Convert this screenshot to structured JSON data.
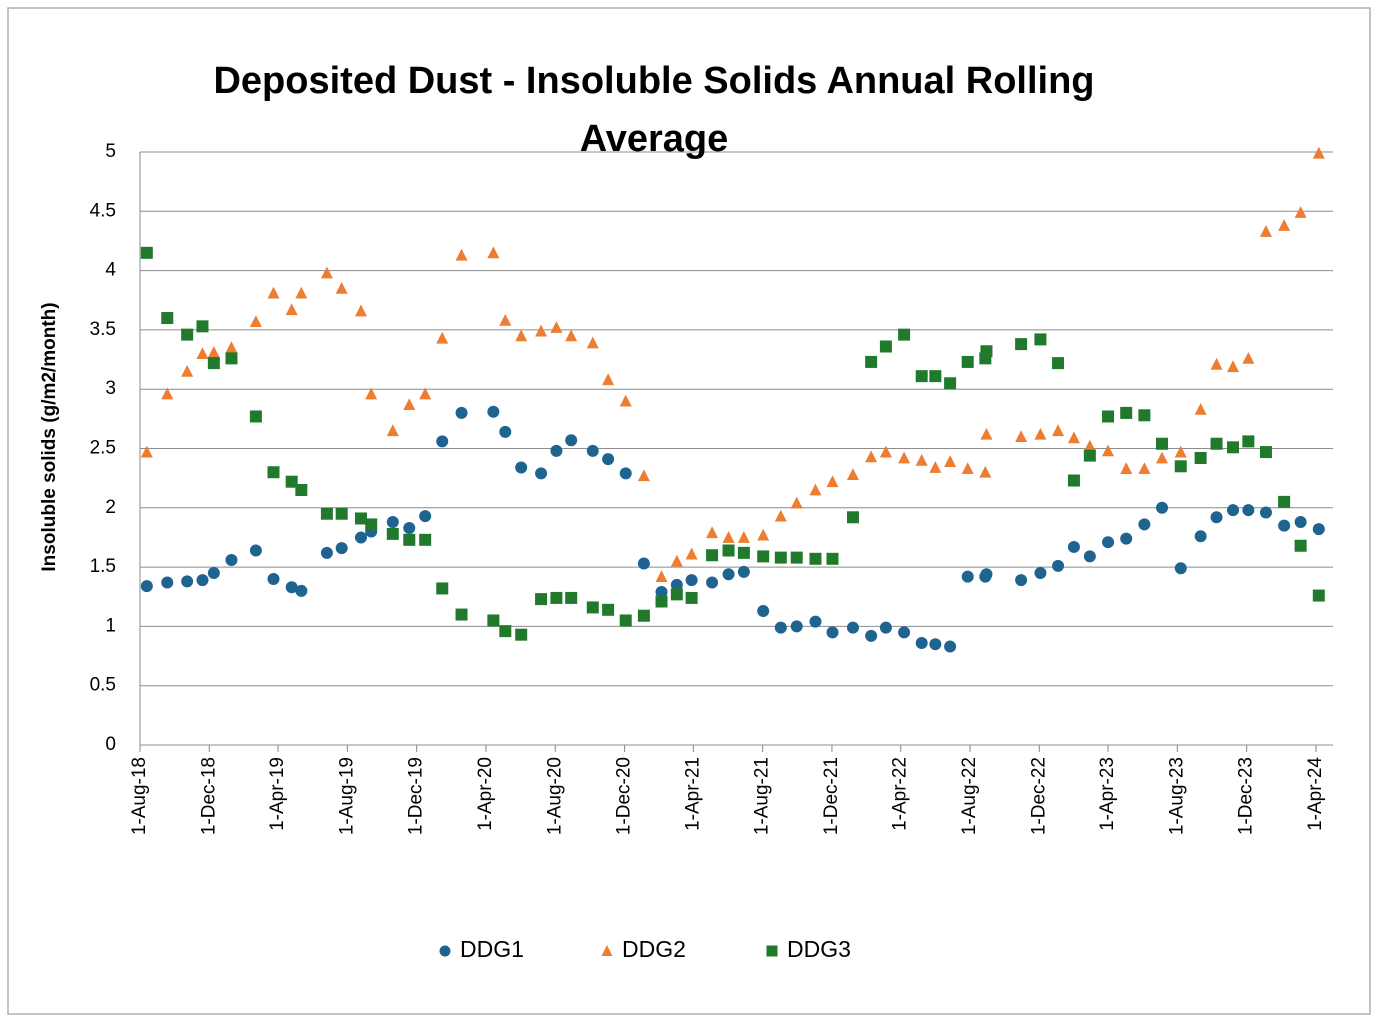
{
  "chart_data": {
    "type": "scatter",
    "title": "Deposited Dust - Insoluble Solids Annual Rolling Average",
    "y_label": "Insoluble solids (g/m2/month)",
    "x": [
      "2018-08-13",
      "2018-09-18",
      "2018-10-23",
      "2018-11-19",
      "2018-12-09",
      "2019-01-09",
      "2019-02-21",
      "2019-03-24",
      "2019-04-25",
      "2019-05-12",
      "2019-06-26",
      "2019-07-22",
      "2019-08-25",
      "2019-09-12",
      "2019-10-20",
      "2019-11-18",
      "2019-12-16",
      "2020-01-15",
      "2020-02-18",
      "2020-04-14",
      "2020-05-05",
      "2020-06-02",
      "2020-07-07",
      "2020-08-03",
      "2020-08-29",
      "2020-10-06",
      "2020-11-02",
      "2020-12-03",
      "2021-01-04",
      "2021-02-04",
      "2021-03-03",
      "2021-03-29",
      "2021-05-04",
      "2021-06-02",
      "2021-06-29",
      "2021-08-02",
      "2021-09-02",
      "2021-09-30",
      "2021-11-02",
      "2021-12-02",
      "2022-01-07",
      "2022-02-08",
      "2022-03-06",
      "2022-04-07",
      "2022-05-08",
      "2022-06-01",
      "2022-06-27",
      "2022-07-28",
      "2022-08-28",
      "2022-08-30",
      "2022-10-30",
      "2022-12-03",
      "2023-01-03",
      "2023-01-31",
      "2023-02-28",
      "2023-04-01",
      "2023-05-03",
      "2023-06-04",
      "2023-07-05",
      "2023-08-07",
      "2023-09-11",
      "2023-10-09",
      "2023-11-07",
      "2023-12-04",
      "2024-01-04",
      "2024-02-05",
      "2024-03-05",
      "2024-04-06"
    ],
    "series": [
      {
        "name": "DDG1",
        "color": "#1f6391",
        "marker": "circle",
        "values": [
          1.34,
          1.37,
          1.38,
          1.39,
          1.45,
          1.56,
          1.64,
          1.4,
          1.33,
          1.3,
          1.62,
          1.66,
          1.75,
          1.8,
          1.88,
          1.83,
          1.93,
          2.56,
          2.8,
          2.81,
          2.64,
          2.34,
          2.29,
          2.48,
          2.57,
          2.48,
          2.41,
          2.29,
          1.53,
          1.29,
          1.35,
          1.39,
          1.37,
          1.44,
          1.46,
          1.13,
          0.99,
          1.0,
          1.04,
          0.95,
          0.99,
          0.92,
          0.99,
          0.95,
          0.86,
          0.85,
          0.83,
          1.42,
          1.42,
          1.44,
          1.39,
          1.45,
          1.51,
          1.67,
          1.59,
          1.71,
          1.74,
          1.86,
          2.0,
          1.49,
          1.76,
          1.92,
          1.98,
          1.98,
          1.96,
          1.85,
          1.88,
          1.82
        ]
      },
      {
        "name": "DDG2",
        "color": "#ed7d31",
        "marker": "triangle",
        "values": [
          2.47,
          2.96,
          3.15,
          3.3,
          3.31,
          3.35,
          3.57,
          3.81,
          3.67,
          3.81,
          3.98,
          3.85,
          3.66,
          2.96,
          2.65,
          2.87,
          2.96,
          3.43,
          4.13,
          4.15,
          3.58,
          3.45,
          3.49,
          3.52,
          3.45,
          3.39,
          3.08,
          2.9,
          2.27,
          1.42,
          1.55,
          1.61,
          1.79,
          1.75,
          1.75,
          1.77,
          1.93,
          2.04,
          2.15,
          2.22,
          2.28,
          2.43,
          2.47,
          2.42,
          2.4,
          2.34,
          2.39,
          2.33,
          2.3,
          2.62,
          2.6,
          2.62,
          2.65,
          2.59,
          2.52,
          2.48,
          2.33,
          2.33,
          2.42,
          2.47,
          2.83,
          3.21,
          3.19,
          3.26,
          4.33,
          4.38,
          4.49,
          4.99
        ]
      },
      {
        "name": "DDG3",
        "color": "#217a2b",
        "marker": "square",
        "values": [
          4.15,
          3.6,
          3.46,
          3.53,
          3.22,
          3.26,
          2.77,
          2.3,
          2.22,
          2.15,
          1.95,
          1.95,
          1.91,
          1.86,
          1.78,
          1.73,
          1.73,
          1.32,
          1.1,
          1.05,
          0.96,
          0.93,
          1.23,
          1.24,
          1.24,
          1.16,
          1.14,
          1.05,
          1.09,
          1.21,
          1.27,
          1.24,
          1.6,
          1.64,
          1.62,
          1.59,
          1.58,
          1.58,
          1.57,
          1.57,
          1.92,
          3.23,
          3.36,
          3.46,
          3.11,
          3.11,
          3.05,
          3.23,
          3.26,
          3.32,
          3.38,
          3.42,
          3.22,
          2.23,
          2.44,
          2.77,
          2.8,
          2.78,
          2.54,
          2.35,
          2.42,
          2.54,
          2.51,
          2.56,
          2.47,
          2.05,
          1.68,
          1.26
        ]
      }
    ],
    "xlim": [
      "2018-08-01",
      "2024-05-01"
    ],
    "xticks": [
      {
        "value": "2018-08-01",
        "label": "1-Aug-18"
      },
      {
        "value": "2018-12-01",
        "label": "1-Dec-18"
      },
      {
        "value": "2019-04-01",
        "label": "1-Apr-19"
      },
      {
        "value": "2019-08-01",
        "label": "1-Aug-19"
      },
      {
        "value": "2019-12-01",
        "label": "1-Dec-19"
      },
      {
        "value": "2020-04-01",
        "label": "1-Apr-20"
      },
      {
        "value": "2020-08-01",
        "label": "1-Aug-20"
      },
      {
        "value": "2020-12-01",
        "label": "1-Dec-20"
      },
      {
        "value": "2021-04-01",
        "label": "1-Apr-21"
      },
      {
        "value": "2021-08-01",
        "label": "1-Aug-21"
      },
      {
        "value": "2021-12-01",
        "label": "1-Dec-21"
      },
      {
        "value": "2022-04-01",
        "label": "1-Apr-22"
      },
      {
        "value": "2022-08-01",
        "label": "1-Aug-22"
      },
      {
        "value": "2022-12-01",
        "label": "1-Dec-22"
      },
      {
        "value": "2023-04-01",
        "label": "1-Apr-23"
      },
      {
        "value": "2023-08-01",
        "label": "1-Aug-23"
      },
      {
        "value": "2023-12-01",
        "label": "1-Dec-23"
      },
      {
        "value": "2024-04-01",
        "label": "1-Apr-24"
      }
    ],
    "ylim": [
      0,
      5
    ],
    "yticks": [
      0,
      0.5,
      1,
      1.5,
      2,
      2.5,
      3,
      3.5,
      4,
      4.5,
      5
    ],
    "grid": true,
    "legend": "bottom"
  }
}
